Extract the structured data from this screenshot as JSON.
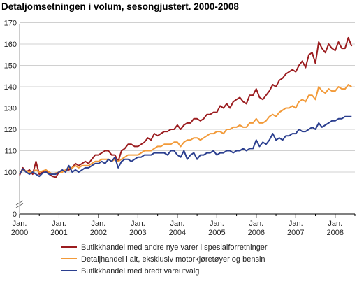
{
  "chart_data": {
    "type": "line",
    "title": "Detaljomsetningen i volum, sesongjustert. 2000-2008",
    "xlabel": "",
    "ylabel": "",
    "ylim": [
      0,
      170
    ],
    "y_axis_break": [
      0,
      90
    ],
    "yticks": [
      0,
      100,
      110,
      120,
      130,
      140,
      150,
      160,
      170
    ],
    "grid": true,
    "legend_position": "bottom",
    "x_tick_labels": [
      {
        "month": "Jan.",
        "year": "2000",
        "t": 0
      },
      {
        "month": "Jan.",
        "year": "2001",
        "t": 12
      },
      {
        "month": "Jan.",
        "year": "2002",
        "t": 24
      },
      {
        "month": "Jan.",
        "year": "2003",
        "t": 36
      },
      {
        "month": "Jan.",
        "year": "2004",
        "t": 48
      },
      {
        "month": "Jan.",
        "year": "2005",
        "t": 60
      },
      {
        "month": "Jan.",
        "year": "2006",
        "t": 72
      },
      {
        "month": "Jan.",
        "year": "2007",
        "t": 84
      },
      {
        "month": "Jan.",
        "year": "2008",
        "t": 96
      }
    ],
    "x_range": [
      0,
      102
    ],
    "series": [
      {
        "name": "Butikkhandel med andre nye varer i spesialforretninger",
        "color": "#9b1c1f",
        "values": [
          98.5,
          102,
          100,
          101,
          99,
          105,
          99,
          100,
          101,
          99,
          98,
          97.5,
          100,
          100,
          101,
          101,
          102,
          104,
          103,
          104,
          105,
          104,
          106,
          108,
          108,
          109,
          110,
          110,
          108,
          108,
          105,
          110,
          111,
          113,
          113,
          112,
          112,
          113,
          114,
          116,
          115,
          118,
          117,
          118,
          119,
          119,
          120,
          120,
          122,
          120,
          122,
          123,
          123,
          125,
          125,
          124,
          125,
          127,
          127,
          128,
          128,
          131,
          130,
          132,
          130,
          133,
          134,
          135,
          133,
          132,
          136,
          136,
          139,
          135,
          134,
          136,
          138,
          141,
          140,
          143,
          144,
          146,
          147,
          148,
          147,
          150,
          152,
          149,
          155,
          156,
          151,
          161,
          158,
          156,
          160,
          158,
          157,
          161,
          158,
          158,
          163,
          159
        ]
      },
      {
        "name": "Detaljhandel i alt, eksklusiv motorkjøretøyer og bensin",
        "color": "#f29a39",
        "values": [
          99.5,
          101,
          100.5,
          100,
          100,
          101,
          100,
          100.5,
          101,
          100,
          99,
          99.5,
          100,
          100,
          101,
          102,
          102,
          103,
          102,
          103,
          103,
          103,
          104,
          105,
          105,
          106,
          106,
          106,
          105,
          106,
          105,
          106,
          107,
          108,
          108,
          108,
          108,
          109,
          110,
          110,
          110,
          111,
          112,
          112,
          113,
          113,
          113,
          114,
          114,
          112,
          114,
          115,
          115,
          116,
          116,
          115,
          116,
          117,
          118,
          118,
          119,
          119,
          118,
          120,
          120,
          121,
          121,
          122,
          121,
          121,
          123,
          123,
          125,
          123,
          123,
          124,
          126,
          127,
          126,
          128,
          129,
          130,
          130,
          131,
          130,
          133,
          134,
          133,
          136,
          136,
          134,
          140,
          138,
          137,
          139,
          138,
          138,
          140,
          139,
          139,
          141,
          140
        ]
      },
      {
        "name": "Butikkhandel med bredt vareutvalg",
        "color": "#2b3f8f",
        "values": [
          99,
          101.5,
          100,
          99,
          100,
          99,
          98,
          99.5,
          100,
          99,
          99,
          99,
          100,
          101,
          100,
          103,
          100,
          101,
          100,
          101,
          102,
          102,
          103,
          104,
          104,
          105,
          104,
          106,
          105,
          107,
          102,
          105,
          106,
          106,
          105,
          106,
          107,
          107,
          108,
          108,
          108,
          109,
          109,
          109,
          109,
          108,
          110,
          110,
          108,
          107,
          110,
          106,
          108,
          109,
          106,
          108,
          108,
          109,
          109,
          110,
          108,
          109,
          109,
          110,
          110,
          109,
          110,
          110,
          111,
          110,
          111,
          111,
          115,
          112,
          114,
          113,
          115,
          118,
          115,
          116,
          115,
          117,
          117,
          118,
          118,
          120,
          119,
          119,
          120,
          121,
          120,
          123,
          121,
          122,
          123,
          124,
          124,
          125,
          125,
          126,
          126,
          126
        ]
      }
    ]
  }
}
